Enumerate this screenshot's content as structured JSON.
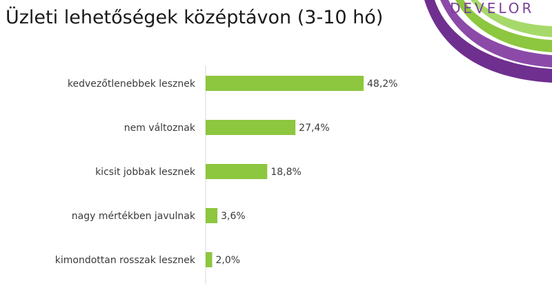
{
  "header": {
    "title": "Üzleti lehetőségek középtávon (3-10 hó)",
    "brand": "DEVELOR"
  },
  "colors": {
    "bar": "#8dc63f",
    "axis": "#d9d9d9",
    "brand_purple": "#7b3f98",
    "brand_green": "#8dc63f"
  },
  "chart_data": {
    "type": "bar",
    "orientation": "horizontal",
    "title": "Üzleti lehetőségek középtávon (3-10 hó)",
    "categories": [
      "kedvezőtlenebbek lesznek",
      "nem változnak",
      "kicsit jobbak lesznek",
      "nagy mértékben javulnak",
      "kimondottan rosszak lesznek"
    ],
    "values": [
      48.2,
      27.4,
      18.8,
      3.6,
      2.0
    ],
    "value_labels": [
      "48,2%",
      "27,4%",
      "18,8%",
      "3,6%",
      "2,0%"
    ],
    "unit": "%",
    "xlim": [
      0,
      100
    ],
    "grid": false,
    "legend": "none"
  }
}
